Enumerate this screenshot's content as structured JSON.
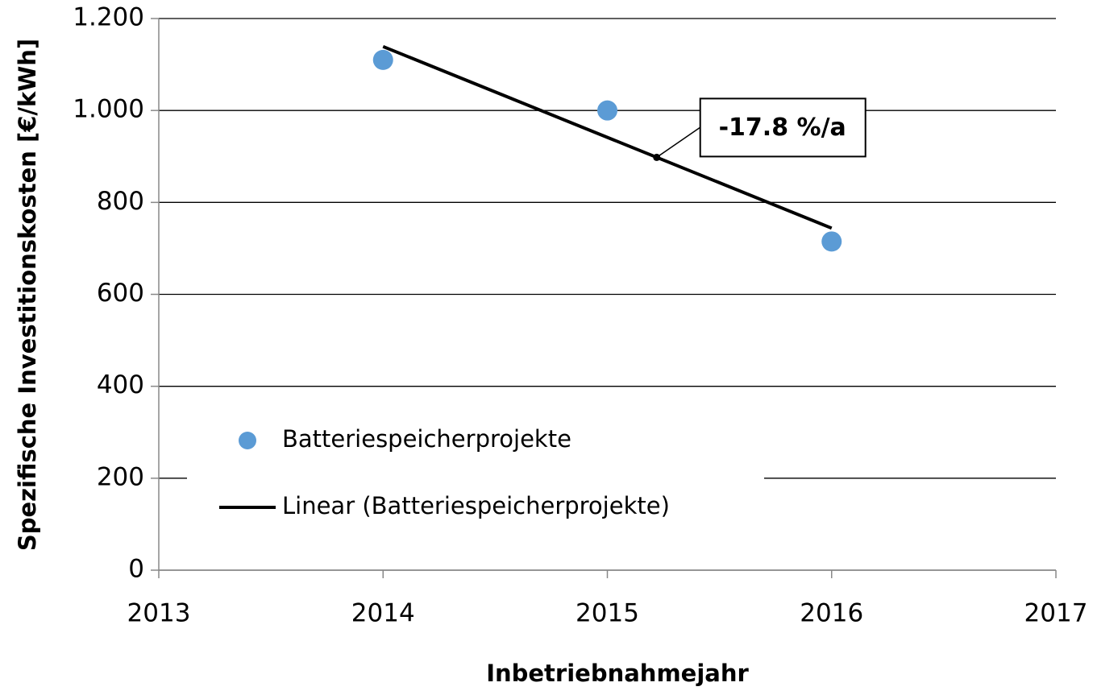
{
  "chart_data": {
    "type": "scatter",
    "y_label": "Spezifische Investitionskosten [€/kWh]",
    "x_label": "Inbetriebnahmejahr",
    "xlim": [
      2013,
      2017
    ],
    "xticks": [
      2013,
      2014,
      2015,
      2016,
      2017
    ],
    "ylim": [
      0,
      1200
    ],
    "yticks": [
      0,
      200,
      400,
      600,
      800,
      {
        "value": 1000,
        "label": "1.000"
      },
      {
        "value": 1200,
        "label": "1.200"
      }
    ],
    "grid": true,
    "legend": "lower left",
    "series": [
      {
        "name": "Batteriespeicherprojekte",
        "type": "scatter",
        "color": "#5b9bd5",
        "x": [
          2014,
          2015,
          2016
        ],
        "values": [
          1110,
          1000,
          715
        ]
      },
      {
        "name": "Linear (Batteriespeicherprojekte)",
        "type": "line",
        "color": "#000000",
        "x": [
          2014,
          2016
        ],
        "values": [
          1139,
          744
        ]
      }
    ],
    "annotation": {
      "text": "-17.8 %/a",
      "x": 2015.22,
      "y": 898
    }
  }
}
